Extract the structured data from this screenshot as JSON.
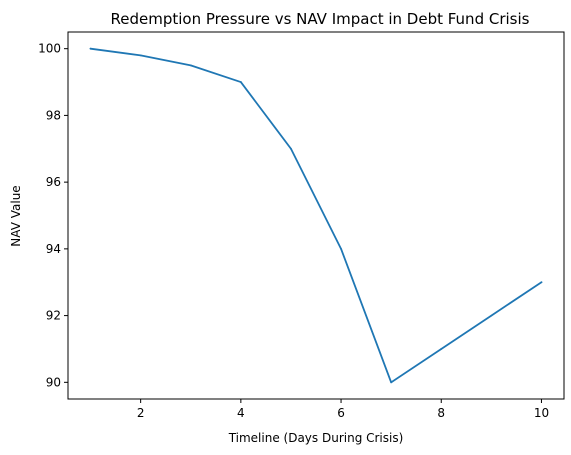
{
  "chart_data": {
    "type": "line",
    "title": "Redemption Pressure vs NAV Impact in Debt Fund Crisis",
    "xlabel": "Timeline (Days During Crisis)",
    "ylabel": "NAV Value",
    "x": [
      1,
      2,
      3,
      4,
      5,
      6,
      7,
      8,
      9,
      10
    ],
    "series": [
      {
        "values": [
          100,
          99.8,
          99.5,
          99,
          97,
          94,
          90,
          91,
          92,
          93
        ],
        "color": "#1f77b4"
      }
    ],
    "xlim": [
      0.55,
      10.45
    ],
    "ylim": [
      89.5,
      100.5
    ],
    "xticks": [
      2,
      4,
      6,
      8,
      10
    ],
    "yticks": [
      90,
      92,
      94,
      96,
      98,
      100
    ],
    "grid": false,
    "legend": "none"
  }
}
